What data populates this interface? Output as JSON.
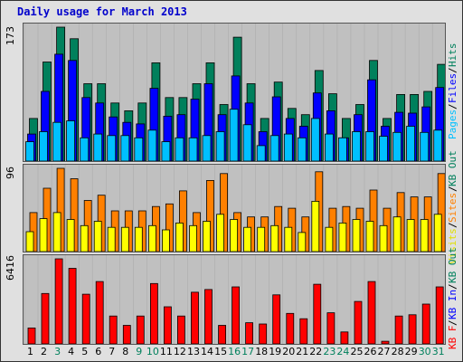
{
  "title": "Daily usage for March 2013",
  "colors": {
    "frame": "#e0e0e0",
    "panel": "#c0c0c0",
    "hits": "#00805c",
    "files": "#0000ff",
    "pages": "#00c0ff",
    "visits": "#ffff00",
    "sites": "#ff8000",
    "kb": "#ff0000",
    "weekday": "#000000",
    "weekend": "#00805c"
  },
  "chart_data": [
    {
      "type": "bar",
      "y_max_label": "173",
      "ylim": [
        0,
        173
      ],
      "categories": [
        1,
        2,
        3,
        4,
        5,
        6,
        7,
        8,
        9,
        10,
        11,
        12,
        13,
        14,
        15,
        16,
        17,
        18,
        19,
        20,
        21,
        22,
        23,
        24,
        25,
        26,
        27,
        28,
        29,
        30,
        31
      ],
      "legend": [
        {
          "label": "Pages",
          "color": "#00c0ff"
        },
        {
          "label": "/",
          "color": "#000000"
        },
        {
          "label": "Files",
          "color": "#0000ff"
        },
        {
          "label": "/",
          "color": "#000000"
        },
        {
          "label": "Hits",
          "color": "#00805c"
        }
      ],
      "series": [
        {
          "name": "Hits",
          "color": "#00805c",
          "values": [
            55,
            128,
            173,
            158,
            100,
            100,
            75,
            65,
            75,
            127,
            82,
            82,
            100,
            127,
            73,
            160,
            100,
            55,
            102,
            68,
            60,
            117,
            87,
            55,
            73,
            130,
            55,
            86,
            86,
            90,
            125
          ]
        },
        {
          "name": "Files",
          "color": "#0000ff",
          "values": [
            35,
            90,
            138,
            130,
            82,
            75,
            57,
            50,
            48,
            94,
            58,
            60,
            80,
            100,
            60,
            110,
            75,
            38,
            83,
            55,
            45,
            88,
            65,
            30,
            60,
            105,
            45,
            63,
            62,
            70,
            95
          ]
        },
        {
          "name": "Pages",
          "color": "#00c0ff",
          "values": [
            25,
            38,
            50,
            52,
            30,
            35,
            33,
            33,
            30,
            40,
            25,
            30,
            30,
            33,
            38,
            67,
            47,
            20,
            33,
            35,
            30,
            55,
            35,
            30,
            38,
            38,
            32,
            37,
            45,
            37,
            40
          ]
        }
      ]
    },
    {
      "type": "bar",
      "y_max_label": "96",
      "ylim": [
        0,
        96
      ],
      "categories": [
        1,
        2,
        3,
        4,
        5,
        6,
        7,
        8,
        9,
        10,
        11,
        12,
        13,
        14,
        15,
        16,
        17,
        18,
        19,
        20,
        21,
        22,
        23,
        24,
        25,
        26,
        27,
        28,
        29,
        30,
        31
      ],
      "legend": [
        {
          "label": "Visits",
          "color": "#e0e000"
        },
        {
          "label": "/",
          "color": "#000000"
        },
        {
          "label": "Sites",
          "color": "#ff8000"
        },
        {
          "label": "/",
          "color": "#000000"
        },
        {
          "label": "KB Out",
          "color": "#00805c"
        }
      ],
      "series": [
        {
          "name": "Sites",
          "color": "#ff8000",
          "values": [
            45,
            73,
            96,
            84,
            59,
            65,
            47,
            47,
            47,
            52,
            55,
            70,
            45,
            82,
            90,
            45,
            40,
            40,
            52,
            50,
            40,
            92,
            50,
            52,
            50,
            71,
            50,
            68,
            63,
            63,
            90
          ]
        },
        {
          "name": "Visits",
          "color": "#ffff00",
          "values": [
            23,
            38,
            45,
            37,
            30,
            35,
            28,
            28,
            28,
            30,
            25,
            33,
            30,
            35,
            43,
            37,
            28,
            28,
            30,
            28,
            22,
            58,
            28,
            33,
            37,
            35,
            30,
            40,
            37,
            37,
            43
          ]
        }
      ]
    },
    {
      "type": "bar",
      "y_max_label": "6416",
      "ylim": [
        0,
        6416
      ],
      "categories": [
        1,
        2,
        3,
        4,
        5,
        6,
        7,
        8,
        9,
        10,
        11,
        12,
        13,
        14,
        15,
        16,
        17,
        18,
        19,
        20,
        21,
        22,
        23,
        24,
        25,
        26,
        27,
        28,
        29,
        30,
        31
      ],
      "legend": [
        {
          "label": "KB F",
          "color": "#ff0000"
        },
        {
          "label": "/",
          "color": "#000000"
        },
        {
          "label": "KB In",
          "color": "#0000ff"
        },
        {
          "label": "/",
          "color": "#000000"
        },
        {
          "label": "KB Out",
          "color": "#00805c"
        }
      ],
      "series": [
        {
          "name": "KB F",
          "color": "#ff0000",
          "values": [
            1200,
            3800,
            6416,
            5700,
            3750,
            4700,
            2100,
            1400,
            2100,
            4550,
            2800,
            2100,
            3900,
            4100,
            1400,
            4300,
            1600,
            1500,
            3700,
            2300,
            1900,
            4500,
            2350,
            900,
            3200,
            4700,
            200,
            2100,
            2200,
            3000,
            4300
          ]
        }
      ]
    }
  ],
  "x_labels": [
    {
      "text": "1",
      "weekend": false
    },
    {
      "text": "2",
      "weekend": false
    },
    {
      "text": "3",
      "weekend": true
    },
    {
      "text": "4",
      "weekend": false
    },
    {
      "text": "5",
      "weekend": false
    },
    {
      "text": "6",
      "weekend": false
    },
    {
      "text": "7",
      "weekend": false
    },
    {
      "text": "8",
      "weekend": false
    },
    {
      "text": "9",
      "weekend": true
    },
    {
      "text": "10",
      "weekend": true
    },
    {
      "text": "11",
      "weekend": false
    },
    {
      "text": "12",
      "weekend": false
    },
    {
      "text": "13",
      "weekend": false
    },
    {
      "text": "14",
      "weekend": false
    },
    {
      "text": "15",
      "weekend": false
    },
    {
      "text": "16",
      "weekend": true
    },
    {
      "text": "17",
      "weekend": true
    },
    {
      "text": "18",
      "weekend": false
    },
    {
      "text": "19",
      "weekend": false
    },
    {
      "text": "20",
      "weekend": false
    },
    {
      "text": "21",
      "weekend": false
    },
    {
      "text": "22",
      "weekend": false
    },
    {
      "text": "23",
      "weekend": true
    },
    {
      "text": "24",
      "weekend": true
    },
    {
      "text": "25",
      "weekend": false
    },
    {
      "text": "26",
      "weekend": false
    },
    {
      "text": "27",
      "weekend": false
    },
    {
      "text": "28",
      "weekend": false
    },
    {
      "text": "29",
      "weekend": false
    },
    {
      "text": "30",
      "weekend": true
    },
    {
      "text": "31",
      "weekend": true
    }
  ]
}
